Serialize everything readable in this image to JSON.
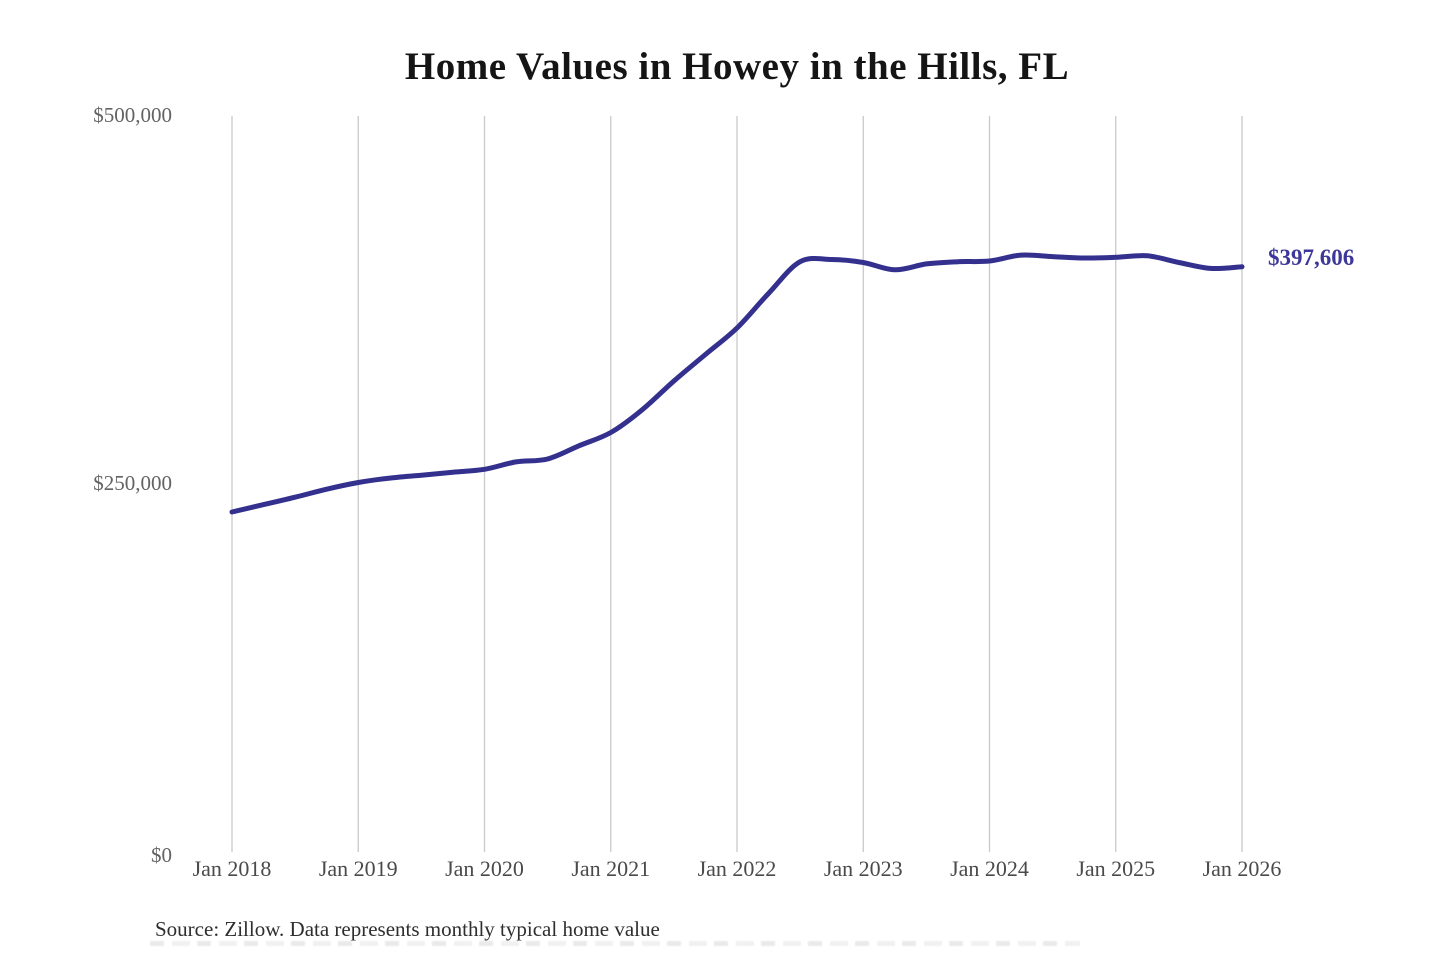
{
  "title": "Home Values in Howey in the Hills, FL",
  "source": {
    "text": "Source: Zillow. Data represents monthly typical home value"
  },
  "colors": {
    "line": "#34308e",
    "end_label": "#3c3799",
    "gridline": "#c9c9c9",
    "title": "#151515",
    "y_label": "#636363",
    "x_label": "#4a4a4a",
    "source": "#2e2e2e"
  },
  "chart_data": {
    "type": "line",
    "title": "Home Values in Howey in the Hills, FL",
    "xlabel": "",
    "ylabel": "",
    "ylim": [
      0,
      500000
    ],
    "grid": "vertical-only",
    "legend": "none",
    "series_name": "Monthly typical home value",
    "xticks": [
      "Jan 2018",
      "Jan 2019",
      "Jan 2020",
      "Jan 2021",
      "Jan 2022",
      "Jan 2023",
      "Jan 2024",
      "Jan 2025",
      "Jan 2026"
    ],
    "yticks": [
      {
        "label": "$500,000",
        "value": 500000
      },
      {
        "label": "$250,000",
        "value": 250000
      },
      {
        "label": "$0",
        "value": 0
      }
    ],
    "x": [
      "2018-01",
      "2018-04",
      "2018-07",
      "2018-10",
      "2019-01",
      "2019-04",
      "2019-07",
      "2019-10",
      "2020-01",
      "2020-04",
      "2020-07",
      "2020-10",
      "2021-01",
      "2021-04",
      "2021-07",
      "2021-10",
      "2022-01",
      "2022-04",
      "2022-07",
      "2022-10",
      "2023-01",
      "2023-04",
      "2023-07",
      "2023-10",
      "2024-01",
      "2024-04",
      "2024-07",
      "2024-10",
      "2025-01",
      "2025-04",
      "2025-07",
      "2025-10",
      "2026-01"
    ],
    "values": [
      231000,
      236000,
      241000,
      246500,
      251000,
      254000,
      256000,
      258000,
      260000,
      265000,
      267000,
      276000,
      285000,
      300500,
      320000,
      338000,
      356000,
      379500,
      401000,
      402500,
      400500,
      395500,
      399500,
      401000,
      401500,
      405500,
      404500,
      403500,
      404000,
      405000,
      400500,
      396500,
      397606
    ],
    "end_label": "$397,606",
    "end_value": 397606
  }
}
